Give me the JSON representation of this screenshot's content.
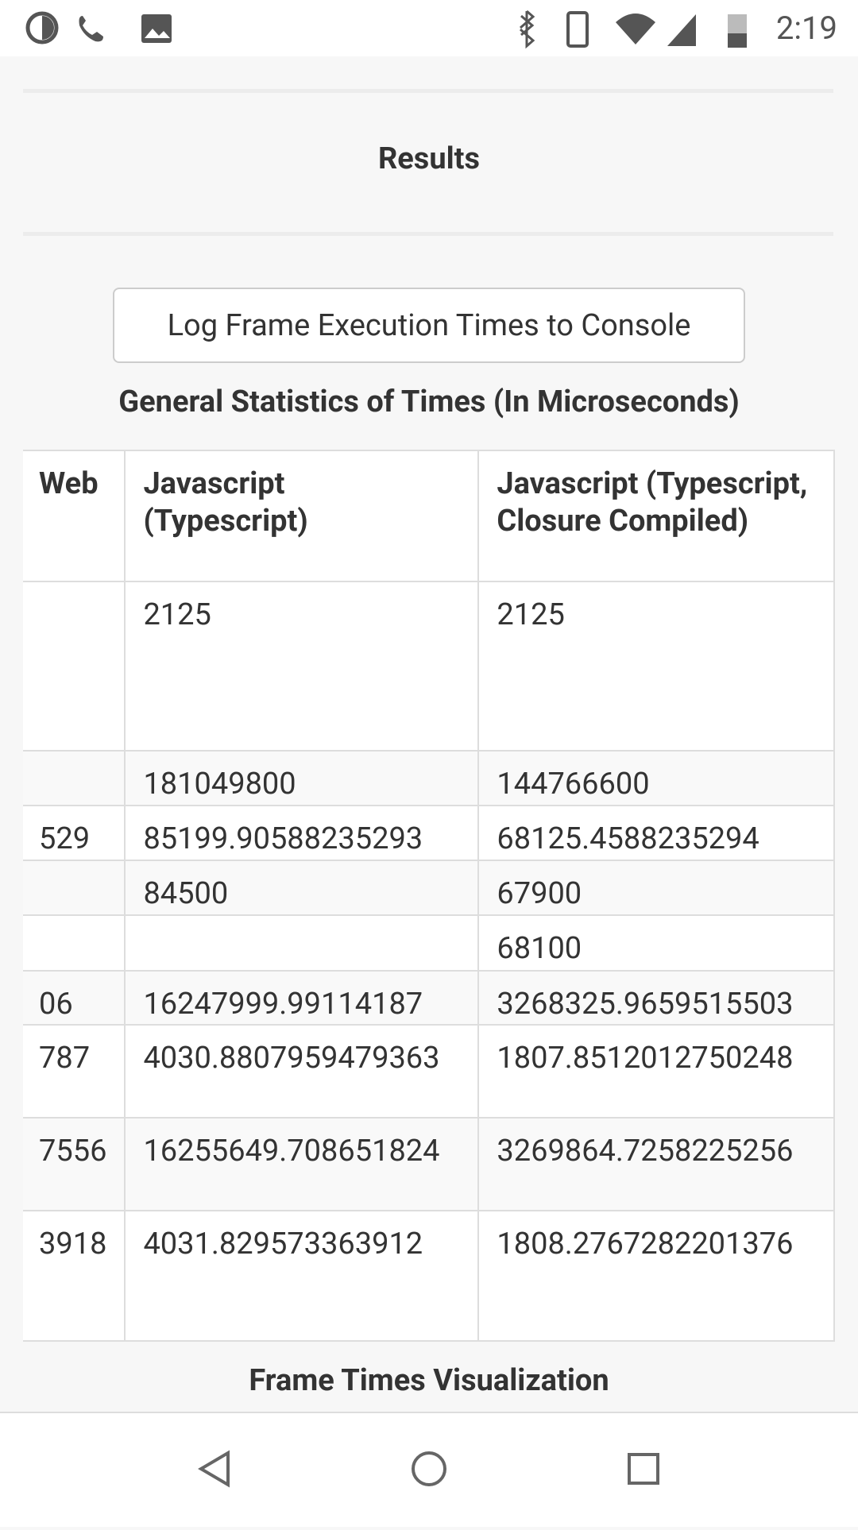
{
  "status_bar": {
    "time": "2:19"
  },
  "header": {
    "title": "Results"
  },
  "button": {
    "label": "Log Frame Execution Times to Console"
  },
  "table": {
    "caption": "General Statistics of Times (In Microseconds)",
    "header": [
      "Web",
      "Javascript (Typescript)",
      "Javascript (Typescript, Closure Compiled)"
    ],
    "rows": [
      [
        null,
        "2125",
        "2125"
      ],
      [
        null,
        "181049800",
        "144766600"
      ],
      [
        "529",
        "85199.90588235293",
        "68125.4588235294"
      ],
      [
        null,
        "84500",
        "67900"
      ],
      [
        null,
        null,
        "68100"
      ],
      [
        "06",
        "16247999.99114187",
        "3268325.9659515503"
      ],
      [
        "787",
        "4030.8807959479363",
        "1807.8512012750248"
      ],
      [
        "7556",
        "16255649.708651824",
        "3269864.7258225256"
      ],
      [
        "3918",
        "4031.829573363912",
        "1808.2767282201376"
      ]
    ]
  },
  "section": {
    "title": "Frame Times Visualization"
  }
}
